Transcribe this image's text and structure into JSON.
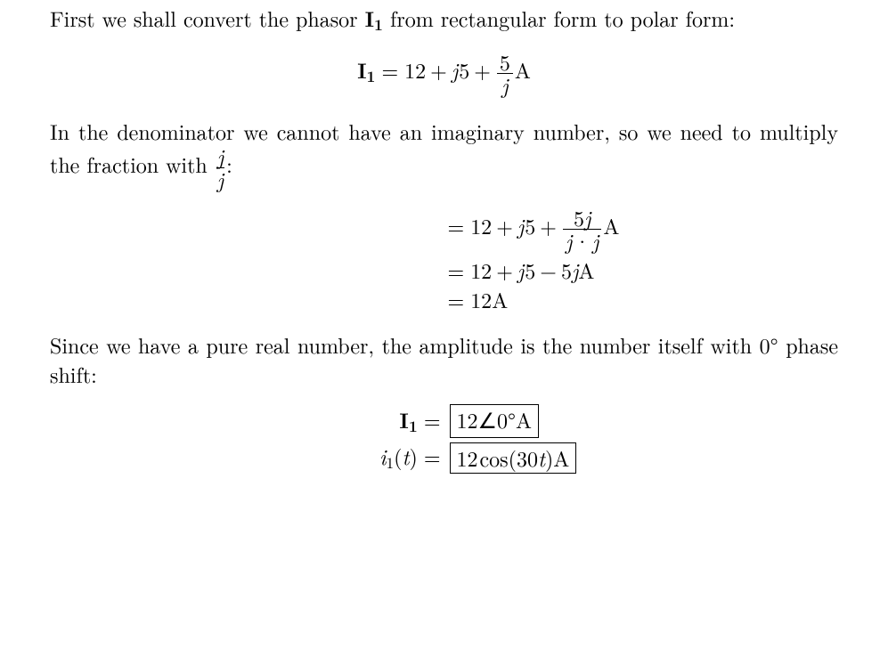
{
  "colors": {
    "text": "#000000",
    "background": "#ffffff",
    "rule": "#000000"
  },
  "font": {
    "family_serif": "Latin Modern Roman / Computer Modern",
    "body_size_pt": 18,
    "math_size_pt": 18
  },
  "para1": {
    "pre": "First we shall convert the phasor ",
    "phasor": "I",
    "phasor_sub": "1",
    "post": " from rectangular form to polar form:"
  },
  "eq1": {
    "lhs_sym": "I",
    "lhs_sub": "1",
    "eq": "=",
    "t1": "12",
    "plus1": "+",
    "jvar": "j",
    "t2": "5",
    "plus2": "+",
    "frac_num": "5",
    "frac_den": "j",
    "unit": "A"
  },
  "para2": {
    "pre": "In the denominator we cannot have an imaginary number, so we need to multiply the fraction with ",
    "frac_num": "j",
    "frac_den": "j",
    "post": ":"
  },
  "eq2": {
    "rows": [
      {
        "eq": "=",
        "t1": "12",
        "plus1": "+",
        "j1": "j",
        "t2": "5",
        "plus2": "+",
        "frac_num_a": "5",
        "frac_num_j": "j",
        "frac_den_l": "j",
        "frac_den_dot": "·",
        "frac_den_r": "j",
        "unit": "A"
      },
      {
        "eq": "=",
        "t1": "12",
        "plus1": "+",
        "j1": "j",
        "t2": "5",
        "minus": "−",
        "t3": "5",
        "j2": "j",
        "unit": "A"
      },
      {
        "eq": "=",
        "t1": "12",
        "unit": "A"
      }
    ]
  },
  "para3": {
    "line": "Since we have a pure real number, the amplitude is the number itself with 0° phase shift:"
  },
  "eq3a": {
    "lhs_sym": "I",
    "lhs_sub": "1",
    "eq": "=",
    "box_mag": "12",
    "box_angle": "∠",
    "box_deg": "0°",
    "box_unit": "A"
  },
  "eq3b": {
    "lhs_fn": "i",
    "lhs_sub": "1",
    "lhs_arg_l": "(",
    "lhs_arg_var": "t",
    "lhs_arg_r": ")",
    "eq": "=",
    "box_mag": "12",
    "box_cos": "cos",
    "box_l": "(",
    "box_w": "30",
    "box_t": "t",
    "box_r": ")",
    "box_unit": "A"
  }
}
